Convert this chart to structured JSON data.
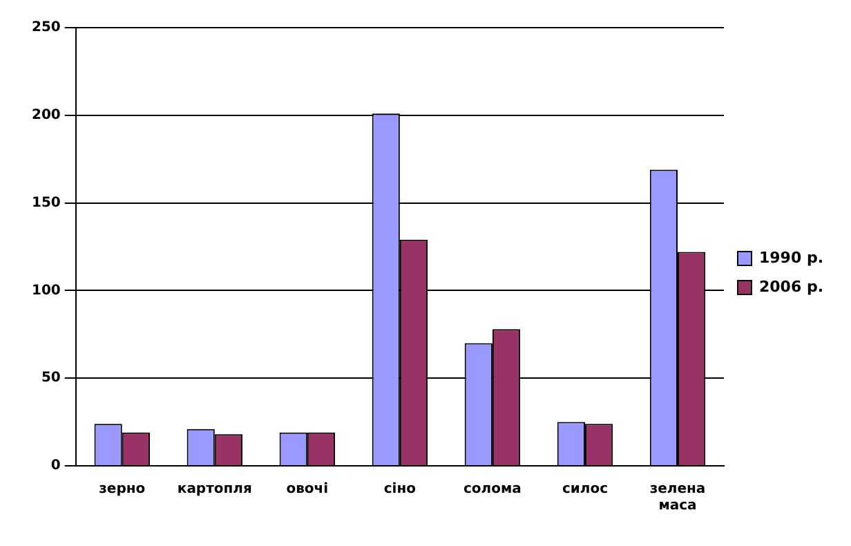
{
  "chart_data": {
    "type": "bar",
    "categories": [
      "зерно",
      "картопля",
      "овочі",
      "сіно",
      "солома",
      "силос",
      "зелена маса"
    ],
    "series": [
      {
        "name": "1990 р.",
        "color": "#9999ff",
        "values": [
          24,
          21,
          19,
          201,
          70,
          25,
          169
        ]
      },
      {
        "name": "2006 р.",
        "color": "#993366",
        "values": [
          19,
          18,
          19,
          129,
          78,
          24,
          122
        ]
      }
    ],
    "ylim": [
      0,
      250
    ],
    "yticks": [
      0,
      50,
      100,
      150,
      200,
      250
    ],
    "grid": "y",
    "legend": "right"
  }
}
